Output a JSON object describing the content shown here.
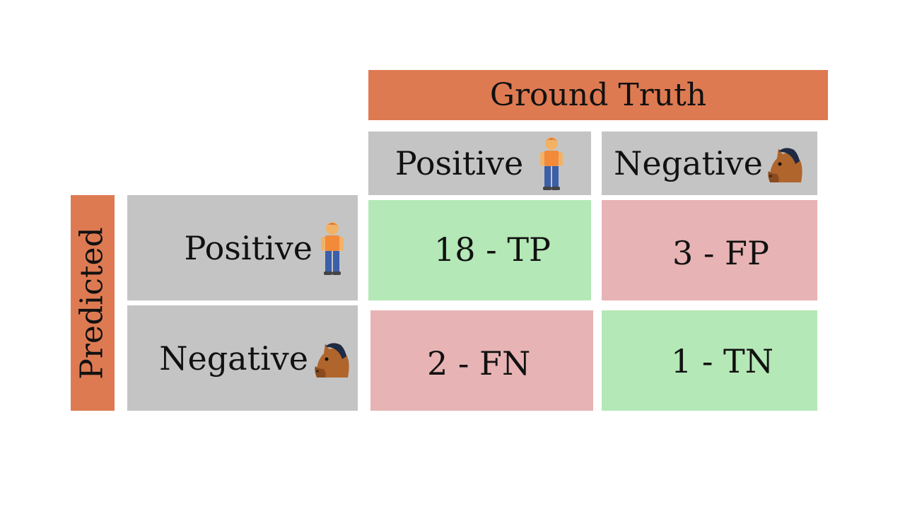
{
  "header": {
    "ground_truth": "Ground Truth",
    "predicted": "Predicted"
  },
  "columns": [
    {
      "label": "Positive",
      "icon": "person-icon"
    },
    {
      "label": "Negative",
      "icon": "horse-icon"
    }
  ],
  "rows": [
    {
      "label": "Positive",
      "icon": "person-icon"
    },
    {
      "label": "Negative",
      "icon": "horse-icon"
    }
  ],
  "cells": {
    "tp": "18 - TP",
    "fp": "3 - FP",
    "fn": "2 - FN",
    "tn": "1 - TN"
  },
  "colors": {
    "header": "#de7a52",
    "label_bg": "#c4c4c4",
    "correct": "#b4e8b6",
    "incorrect": "#e8b3b4"
  }
}
